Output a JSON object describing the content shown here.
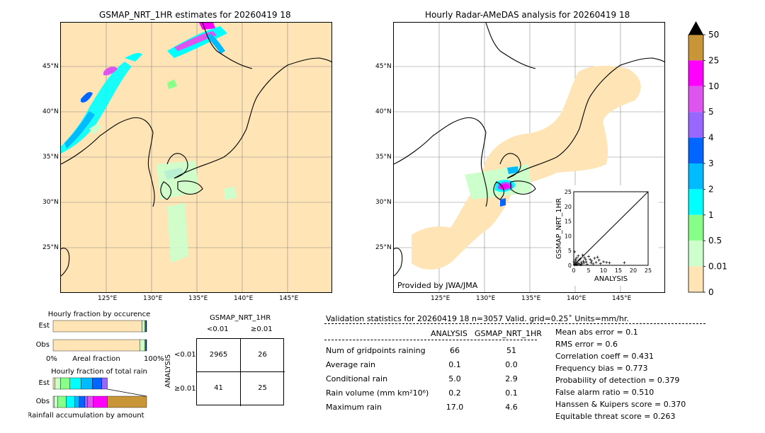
{
  "map_left": {
    "title": "GSMAP_NRT_1HR estimates for 20260419 18",
    "lat_ticks": [
      "45°N",
      "40°N",
      "35°N",
      "30°N",
      "25°N"
    ],
    "lon_ticks": [
      "125°E",
      "130°E",
      "135°E",
      "140°E",
      "145°E"
    ]
  },
  "map_right": {
    "title": "Hourly Radar-AMeDAS analysis for 20260419 18",
    "lat_ticks": [
      "45°N",
      "40°N",
      "35°N",
      "30°N",
      "25°N"
    ],
    "lon_ticks": [
      "125°E",
      "130°E",
      "135°E",
      "140°E",
      "145°E"
    ],
    "credit": "Provided by JWA/JMA"
  },
  "colorbar": {
    "labels": [
      "50",
      "25",
      "10",
      "5",
      "4",
      "3",
      "2",
      "1",
      "0.5",
      "0.01",
      "0"
    ],
    "colors": [
      "#c89637",
      "#ff00ff",
      "#dd55ee",
      "#9966ff",
      "#0066ff",
      "#00bbff",
      "#00ffff",
      "#88ff88",
      "#ccffcc",
      "#ffe4b5"
    ]
  },
  "chart_data": [
    {
      "type": "scatter",
      "xlabel": "ANALYSIS",
      "ylabel": "GSMAP_NRT_1HR",
      "xlim": [
        0,
        25
      ],
      "ylim": [
        0,
        25
      ],
      "xticks": [
        "0",
        "5",
        "10",
        "15",
        "20",
        "25"
      ],
      "yticks": [
        "0",
        "5",
        "10",
        "15",
        "20",
        "25"
      ],
      "points": [
        [
          0.2,
          0.3
        ],
        [
          0.4,
          0.1
        ],
        [
          0.5,
          0.8
        ],
        [
          0.7,
          1.5
        ],
        [
          0.9,
          0.4
        ],
        [
          1.0,
          2.5
        ],
        [
          1.2,
          1.0
        ],
        [
          1.5,
          3.2
        ],
        [
          1.6,
          0.6
        ],
        [
          1.8,
          1.8
        ],
        [
          2.0,
          0.3
        ],
        [
          2.2,
          2.2
        ],
        [
          2.5,
          1.0
        ],
        [
          2.8,
          0.5
        ],
        [
          3.0,
          3.5
        ],
        [
          3.2,
          1.4
        ],
        [
          3.5,
          0.8
        ],
        [
          4.0,
          2.0
        ],
        [
          4.2,
          1.2
        ],
        [
          4.5,
          0.4
        ],
        [
          5.0,
          3.0
        ],
        [
          5.5,
          2.0
        ],
        [
          6.0,
          1.5
        ],
        [
          6.5,
          0.5
        ],
        [
          7.0,
          2.4
        ],
        [
          7.5,
          1.0
        ],
        [
          8.0,
          2.8
        ],
        [
          8.5,
          1.8
        ],
        [
          9.0,
          0.6
        ],
        [
          10.0,
          1.2
        ],
        [
          11.0,
          1.0
        ],
        [
          12.0,
          0.8
        ],
        [
          17.0,
          0.9
        ],
        [
          0.3,
          4.6
        ],
        [
          1.0,
          0.2
        ],
        [
          0.6,
          2.0
        ],
        [
          2.4,
          0.2
        ],
        [
          3.6,
          2.6
        ],
        [
          5.8,
          0.9
        ],
        [
          0.1,
          1.2
        ]
      ]
    },
    {
      "type": "bar",
      "title": "Hourly fraction by occurence",
      "categories": [
        "Est",
        "Obs"
      ],
      "series": [
        {
          "values": [
            0.95,
            0.93
          ]
        },
        {
          "values": [
            0.03,
            0.05
          ]
        },
        {
          "values": [
            0.01,
            0.01
          ]
        },
        {
          "values": [
            0.01,
            0.01
          ]
        }
      ],
      "xlabel": "Areal fraction",
      "xlim_labels": [
        "0%",
        "100%"
      ],
      "colors": [
        "#ffe4b5",
        "#ccffcc",
        "#88ff88",
        "#001a66"
      ]
    },
    {
      "type": "bar",
      "title": "Hourly fraction of total rain",
      "categories": [
        "Est",
        "Obs"
      ],
      "series": [
        {
          "values": [
            0.02,
            0.01
          ]
        },
        {
          "values": [
            0.06,
            0.04
          ]
        },
        {
          "values": [
            0.1,
            0.09
          ]
        },
        {
          "values": [
            0.12,
            0.09
          ]
        },
        {
          "values": [
            0.12,
            0.05
          ]
        },
        {
          "values": [
            0.1,
            0.06
          ]
        },
        {
          "values": [
            0.06,
            0.03
          ]
        },
        {
          "values": [
            0.0,
            0.06
          ]
        },
        {
          "values": [
            0.0,
            0.15
          ]
        },
        {
          "values": [
            0.0,
            0.42
          ]
        }
      ],
      "xlabel": "Rainfall accumulation by amount",
      "colors": [
        "#ffe4b5",
        "#ccffcc",
        "#88ff88",
        "#00ffff",
        "#00bbff",
        "#0066ff",
        "#9966ff",
        "#dd55ee",
        "#ff00ff",
        "#c89637"
      ]
    }
  ],
  "contingency": {
    "header_top": "GSMAP_NRT_1HR",
    "col_lt": "<0.01",
    "col_ge": "≥0.01",
    "row_axis": "ANALYSIS",
    "row_lt": "<0.01",
    "row_ge": "≥0.01",
    "cells": [
      [
        "2965",
        "26"
      ],
      [
        "41",
        "25"
      ]
    ]
  },
  "validation": {
    "header": "Validation statistics for 20260419 18  n=3057 Valid. grid=0.25˚ Units=mm/hr.",
    "col_analysis": "ANALYSIS",
    "col_gsmap": "GSMAP_NRT_1HR",
    "rows": [
      {
        "label": "Num of gridpoints raining",
        "analysis": "66",
        "gsmap": "51"
      },
      {
        "label": "Average rain",
        "analysis": "0.1",
        "gsmap": "0.0"
      },
      {
        "label": "Conditional rain",
        "analysis": "5.0",
        "gsmap": "2.9"
      },
      {
        "label": "Rain volume (mm km²10⁶)",
        "analysis": "0.2",
        "gsmap": "0.1"
      },
      {
        "label": "Maximum rain",
        "analysis": "17.0",
        "gsmap": "4.6"
      }
    ],
    "scores": [
      "Mean abs error =    0.1",
      "RMS error =    0.6",
      "Correlation coeff =  0.431",
      "Frequency bias =  0.773",
      "Probability of detection =  0.379",
      "False alarm ratio =  0.510",
      "Hanssen & Kuipers score =  0.370",
      "Equitable threat score =  0.263"
    ]
  }
}
